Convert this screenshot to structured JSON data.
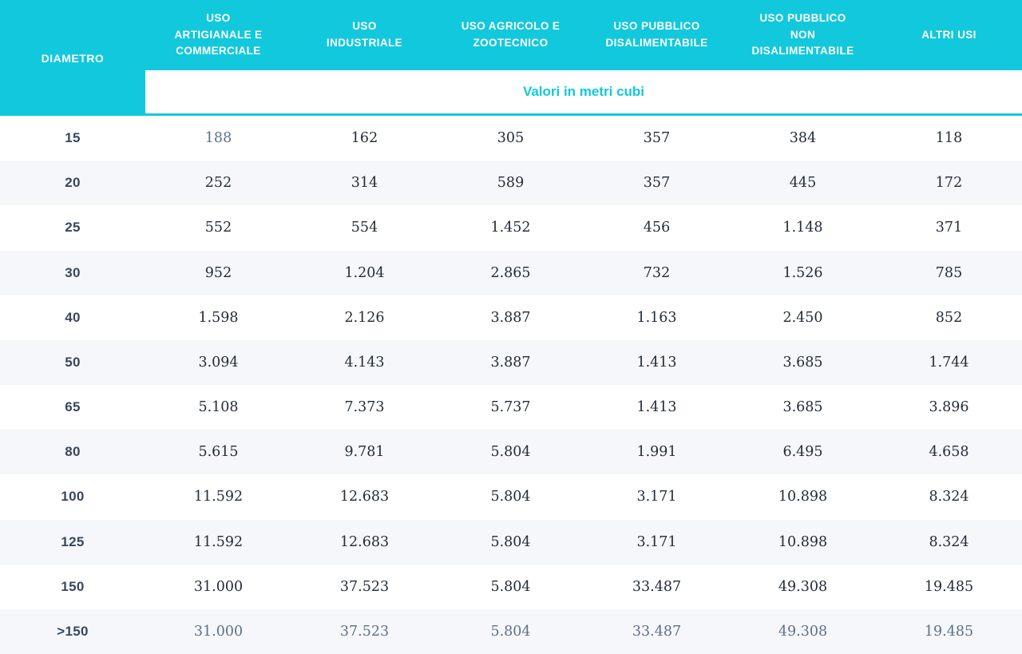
{
  "colors": {
    "accent": "#12C8DC",
    "row_alt": "#F5F7FA",
    "value_text": "#232C39",
    "label_text": "#39475F",
    "muted_text": "#5F6F88",
    "header_text": "#FFFFFF"
  },
  "table": {
    "header": {
      "diametro_label": "DIAMETRO",
      "columns": [
        "USO\nARTIGIANALE E\nCOMMERCIALE",
        "USO\nINDUSTRIALE",
        "USO AGRICOLO E\nZOOTECNICO",
        "USO PUBBLICO\nDISALIMENTABILE",
        "USO PUBBLICO\nNON\nDISALIMENTABILE",
        "ALTRI USI"
      ],
      "subheader": "Valori in metri cubi"
    },
    "rows": [
      {
        "diametro": "15",
        "values": [
          "188",
          "162",
          "305",
          "357",
          "384",
          "118"
        ],
        "muted_values": [
          0
        ]
      },
      {
        "diametro": "20",
        "values": [
          "252",
          "314",
          "589",
          "357",
          "445",
          "172"
        ],
        "muted_values": []
      },
      {
        "diametro": "25",
        "values": [
          "552",
          "554",
          "1.452",
          "456",
          "1.148",
          "371"
        ],
        "muted_values": []
      },
      {
        "diametro": "30",
        "values": [
          "952",
          "1.204",
          "2.865",
          "732",
          "1.526",
          "785"
        ],
        "muted_values": []
      },
      {
        "diametro": "40",
        "values": [
          "1.598",
          "2.126",
          "3.887",
          "1.163",
          "2.450",
          "852"
        ],
        "muted_values": []
      },
      {
        "diametro": "50",
        "values": [
          "3.094",
          "4.143",
          "3.887",
          "1.413",
          "3.685",
          "1.744"
        ],
        "muted_values": []
      },
      {
        "diametro": "65",
        "values": [
          "5.108",
          "7.373",
          "5.737",
          "1.413",
          "3.685",
          "3.896"
        ],
        "muted_values": []
      },
      {
        "diametro": "80",
        "values": [
          "5.615",
          "9.781",
          "5.804",
          "1.991",
          "6.495",
          "4.658"
        ],
        "muted_values": []
      },
      {
        "diametro": "100",
        "values": [
          "11.592",
          "12.683",
          "5.804",
          "3.171",
          "10.898",
          "8.324"
        ],
        "muted_values": []
      },
      {
        "diametro": "125",
        "values": [
          "11.592",
          "12.683",
          "5.804",
          "3.171",
          "10.898",
          "8.324"
        ],
        "muted_values": []
      },
      {
        "diametro": "150",
        "values": [
          "31.000",
          "37.523",
          "5.804",
          "33.487",
          "49.308",
          "19.485"
        ],
        "muted_values": []
      },
      {
        "diametro": ">150",
        "values": [
          "31.000",
          "37.523",
          "5.804",
          "33.487",
          "49.308",
          "19.485"
        ],
        "muted_values": [
          0,
          1,
          2,
          3,
          4,
          5
        ]
      }
    ]
  },
  "chart_data": {
    "type": "table",
    "title": "Valori in metri cubi",
    "columns": [
      "DIAMETRO",
      "USO ARTIGIANALE E COMMERCIALE",
      "USO INDUSTRIALE",
      "USO AGRICOLO E ZOOTECNICO",
      "USO PUBBLICO DISALIMENTABILE",
      "USO PUBBLICO NON DISALIMENTABILE",
      "ALTRI USI"
    ],
    "rows": [
      [
        "15",
        "188",
        "162",
        "305",
        "357",
        "384",
        "118"
      ],
      [
        "20",
        "252",
        "314",
        "589",
        "357",
        "445",
        "172"
      ],
      [
        "25",
        "552",
        "554",
        "1.452",
        "456",
        "1.148",
        "371"
      ],
      [
        "30",
        "952",
        "1.204",
        "2.865",
        "732",
        "1.526",
        "785"
      ],
      [
        "40",
        "1.598",
        "2.126",
        "3.887",
        "1.163",
        "2.450",
        "852"
      ],
      [
        "50",
        "3.094",
        "4.143",
        "3.887",
        "1.413",
        "3.685",
        "1.744"
      ],
      [
        "65",
        "5.108",
        "7.373",
        "5.737",
        "1.413",
        "3.685",
        "3.896"
      ],
      [
        "80",
        "5.615",
        "9.781",
        "5.804",
        "1.991",
        "6.495",
        "4.658"
      ],
      [
        "100",
        "11.592",
        "12.683",
        "5.804",
        "3.171",
        "10.898",
        "8.324"
      ],
      [
        "125",
        "11.592",
        "12.683",
        "5.804",
        "3.171",
        "10.898",
        "8.324"
      ],
      [
        "150",
        "31.000",
        "37.523",
        "5.804",
        "33.487",
        "49.308",
        "19.485"
      ],
      [
        ">150",
        "31.000",
        "37.523",
        "5.804",
        "33.487",
        "49.308",
        "19.485"
      ]
    ]
  }
}
